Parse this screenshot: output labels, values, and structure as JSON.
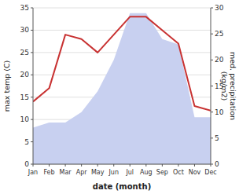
{
  "chart_data": {
    "type": "line",
    "categories": [
      "Jan",
      "Feb",
      "Mar",
      "Apr",
      "May",
      "Jun",
      "Jul",
      "Aug",
      "Sep",
      "Oct",
      "Nov",
      "Dec"
    ],
    "series": [
      {
        "type": "area",
        "axis": "y2",
        "color": "#c8d0f0",
        "values": [
          7,
          8,
          8,
          10,
          14,
          20,
          29,
          29,
          24,
          23,
          9,
          9
        ]
      },
      {
        "type": "line",
        "color": "#c83232",
        "values": [
          14,
          17,
          29,
          28,
          25,
          29,
          33,
          33,
          30,
          27,
          13,
          12
        ]
      }
    ],
    "x_label": "date (month)",
    "y_label": "max temp (C)",
    "y2_label": "med. precipitation\n(kg/m2)",
    "ylim": [
      0,
      35
    ],
    "yticks": [
      0,
      5,
      10,
      15,
      20,
      25,
      30,
      35
    ],
    "y2lim": [
      0,
      30
    ],
    "y2ticks": [
      0,
      5,
      10,
      15,
      20,
      25,
      30
    ],
    "grid": true
  }
}
